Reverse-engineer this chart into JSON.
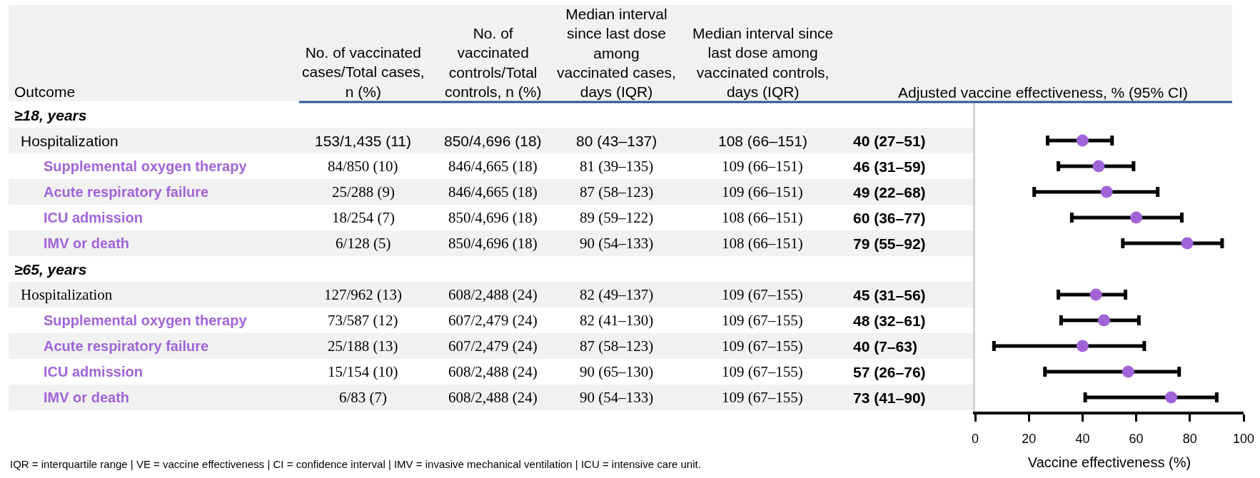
{
  "chart_data": [
    {
      "type": "other",
      "ylabel": "Outcome",
      "categories": [
        "No. of vaccinated\ncases/Total cases,\nn (%)",
        "No. of\nvaccinated\ncontrols/Total\ncontrols, n (%)",
        "Median interval\nsince last dose\namong\nvaccinated cases,\ndays (IQR)",
        "Median interval since\nlast dose among\nvaccinated controls,\ndays (IQR)",
        null
      ],
      "y_categories": [
        "≥18, years",
        "Hospitalization",
        "Supplemental oxygen therapy",
        "Acute respiratory failure",
        "ICU admission",
        "IMV or death",
        "≥65, years",
        "Hospitalization",
        "Supplemental oxygen therapy",
        "Acute respiratory failure",
        "ICU admission",
        "IMV or death"
      ],
      "cell_labels": [
        [
          null,
          null,
          null,
          null,
          null
        ],
        [
          "153/1,435 (11)",
          "850/4,696 (18)",
          "80 (43–137)",
          "108 (66–151)",
          "40 (27–51)"
        ],
        [
          "84/850 (10)",
          "846/4,665 (18)",
          "81 (39–135)",
          "109 (66–151)",
          "46 (31–59)"
        ],
        [
          "25/288 (9)",
          "846/4,665 (18)",
          "87 (58–123)",
          "109 (66–151)",
          "49 (22–68)"
        ],
        [
          "18/254 (7)",
          "850/4,696 (18)",
          "89 (59–122)",
          "108 (66–151)",
          "60 (36–77)"
        ],
        [
          "6/128 (5)",
          "850/4,696 (18)",
          "90 (54–133)",
          "108 (66–151)",
          "79 (55–92)"
        ],
        [
          null,
          null,
          null,
          null,
          null
        ],
        [
          "127/962 (13)",
          "608/2,488 (24)",
          "82 (49–137)",
          "109 (67–155)",
          "45 (31–56)"
        ],
        [
          "73/587 (12)",
          "607/2,479 (24)",
          "82 (41–130)",
          "109 (67–155)",
          "48 (32–61)"
        ],
        [
          "25/188 (13)",
          "607/2,479 (24)",
          "87 (58–123)",
          "109 (67–155)",
          "40 (7–63)"
        ],
        [
          "15/154 (10)",
          "608/2,488 (24)",
          "90 (65–130)",
          "109 (67–155)",
          "57 (26–76)"
        ],
        [
          "6/83 (7)",
          "608/2,488 (24)",
          "90 (54–133)",
          "109 (67–155)",
          "73 (41–90)"
        ]
      ],
      "annotations": [
        "IQR = interquartile range | VE = vaccine effectiveness | CI = confidence interval | IMV = invasive mechanical ventilation | ICU = intensive care unit."
      ]
    },
    {
      "type": "scatter",
      "orientation": "horizontal",
      "title": "Adjusted vaccine effectiveness, % (95% CI)",
      "xlabel": "Vaccine effectiveness (%)",
      "categories": [
        null,
        null,
        null,
        null,
        null,
        null,
        null,
        null,
        null,
        null,
        null,
        null
      ],
      "values": [
        null,
        40,
        46,
        49,
        60,
        79,
        null,
        45,
        48,
        40,
        57,
        73
      ],
      "errors": [
        null,
        [
          27,
          51
        ],
        [
          31,
          59
        ],
        [
          22,
          68
        ],
        [
          36,
          77
        ],
        [
          55,
          92
        ],
        null,
        [
          31,
          56
        ],
        [
          32,
          61
        ],
        [
          7,
          63
        ],
        [
          26,
          76
        ],
        [
          41,
          90
        ]
      ],
      "color": "#a064d8",
      "marker": "circle",
      "xlim": [
        0,
        100
      ],
      "xticks": [
        0,
        20,
        40,
        60,
        80,
        100
      ],
      "tick_labels": "x"
    }
  ]
}
